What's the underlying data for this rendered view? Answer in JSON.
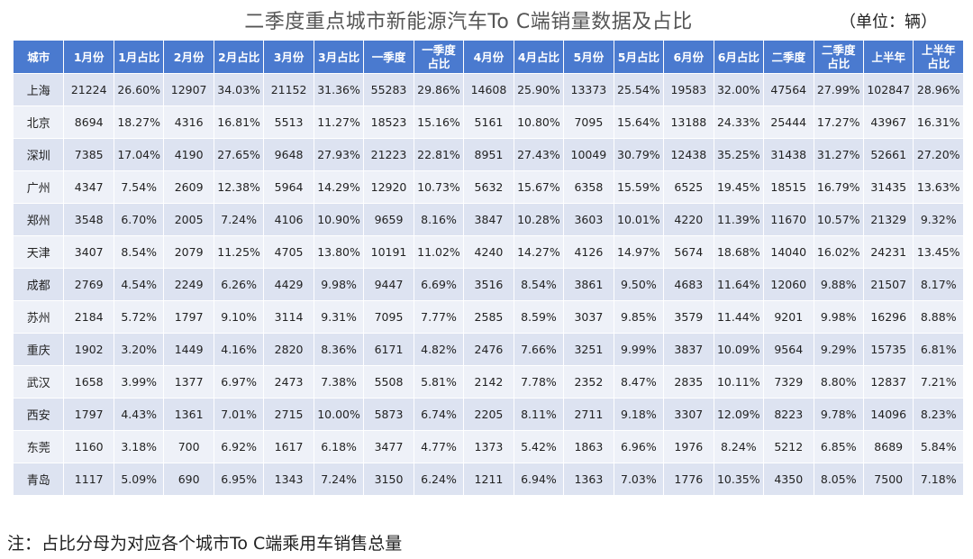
{
  "title": "二季度重点城市新能源汽车To C端销量数据及占比",
  "unit": "（单位：辆）",
  "headers": [
    "城市",
    "1月份",
    "1月占比",
    "2月份",
    "2月占比",
    "3月份",
    "3月占比",
    "一季度",
    "一季度占比",
    "4月份",
    "4月占比",
    "5月份",
    "5月占比",
    "6月份",
    "6月占比",
    "二季度",
    "二季度占比",
    "上半年",
    "上半年占比"
  ],
  "rows": [
    [
      "上海",
      "21224",
      "26.60%",
      "12907",
      "34.03%",
      "21152",
      "31.36%",
      "55283",
      "29.86%",
      "14608",
      "25.90%",
      "13373",
      "25.54%",
      "19583",
      "32.00%",
      "47564",
      "27.99%",
      "102847",
      "28.96%"
    ],
    [
      "北京",
      "8694",
      "18.27%",
      "4316",
      "16.81%",
      "5513",
      "11.27%",
      "18523",
      "15.16%",
      "5161",
      "10.80%",
      "7095",
      "15.64%",
      "13188",
      "24.33%",
      "25444",
      "17.27%",
      "43967",
      "16.31%"
    ],
    [
      "深圳",
      "7385",
      "17.04%",
      "4190",
      "27.65%",
      "9648",
      "27.93%",
      "21223",
      "22.81%",
      "8951",
      "27.43%",
      "10049",
      "30.79%",
      "12438",
      "35.25%",
      "31438",
      "31.27%",
      "52661",
      "27.20%"
    ],
    [
      "广州",
      "4347",
      "7.54%",
      "2609",
      "12.38%",
      "5964",
      "14.29%",
      "12920",
      "10.73%",
      "5632",
      "15.67%",
      "6358",
      "15.59%",
      "6525",
      "19.45%",
      "18515",
      "16.79%",
      "31435",
      "13.63%"
    ],
    [
      "郑州",
      "3548",
      "6.70%",
      "2005",
      "7.24%",
      "4106",
      "10.90%",
      "9659",
      "8.16%",
      "3847",
      "10.28%",
      "3603",
      "10.01%",
      "4220",
      "11.39%",
      "11670",
      "10.57%",
      "21329",
      "9.32%"
    ],
    [
      "天津",
      "3407",
      "8.54%",
      "2079",
      "11.25%",
      "4705",
      "13.80%",
      "10191",
      "11.02%",
      "4240",
      "14.27%",
      "4126",
      "14.97%",
      "5674",
      "18.68%",
      "14040",
      "16.02%",
      "24231",
      "13.45%"
    ],
    [
      "成都",
      "2769",
      "4.54%",
      "2249",
      "6.26%",
      "4429",
      "9.98%",
      "9447",
      "6.69%",
      "3516",
      "8.54%",
      "3861",
      "9.50%",
      "4683",
      "11.64%",
      "12060",
      "9.88%",
      "21507",
      "8.17%"
    ],
    [
      "苏州",
      "2184",
      "5.72%",
      "1797",
      "9.10%",
      "3114",
      "9.31%",
      "7095",
      "7.77%",
      "2585",
      "8.59%",
      "3037",
      "9.85%",
      "3579",
      "11.44%",
      "9201",
      "9.98%",
      "16296",
      "8.88%"
    ],
    [
      "重庆",
      "1902",
      "3.20%",
      "1449",
      "4.16%",
      "2820",
      "8.36%",
      "6171",
      "4.82%",
      "2476",
      "7.66%",
      "3251",
      "9.99%",
      "3837",
      "10.09%",
      "9564",
      "9.29%",
      "15735",
      "6.81%"
    ],
    [
      "武汉",
      "1658",
      "3.99%",
      "1377",
      "6.97%",
      "2473",
      "7.38%",
      "5508",
      "5.81%",
      "2142",
      "7.78%",
      "2352",
      "8.47%",
      "2835",
      "10.11%",
      "7329",
      "8.80%",
      "12837",
      "7.21%"
    ],
    [
      "西安",
      "1797",
      "4.43%",
      "1361",
      "7.01%",
      "2715",
      "10.00%",
      "5873",
      "6.74%",
      "2205",
      "8.11%",
      "2711",
      "9.18%",
      "3307",
      "12.09%",
      "8223",
      "9.78%",
      "14096",
      "8.23%"
    ],
    [
      "东莞",
      "1160",
      "3.18%",
      "700",
      "6.92%",
      "1617",
      "6.18%",
      "3477",
      "4.77%",
      "1373",
      "5.42%",
      "1863",
      "6.96%",
      "1976",
      "8.24%",
      "5212",
      "6.85%",
      "8689",
      "5.84%"
    ],
    [
      "青岛",
      "1117",
      "5.09%",
      "690",
      "6.95%",
      "1343",
      "7.24%",
      "3150",
      "6.24%",
      "1211",
      "6.94%",
      "1363",
      "7.03%",
      "1776",
      "10.35%",
      "4350",
      "8.05%",
      "7500",
      "7.18%"
    ]
  ],
  "note": "注：占比分母为对应各个城市To C端乘用车销售总量",
  "colors": {
    "header_bg": "#4a7acf",
    "row_odd": "#dde3f1",
    "row_even": "#eef1f8"
  }
}
